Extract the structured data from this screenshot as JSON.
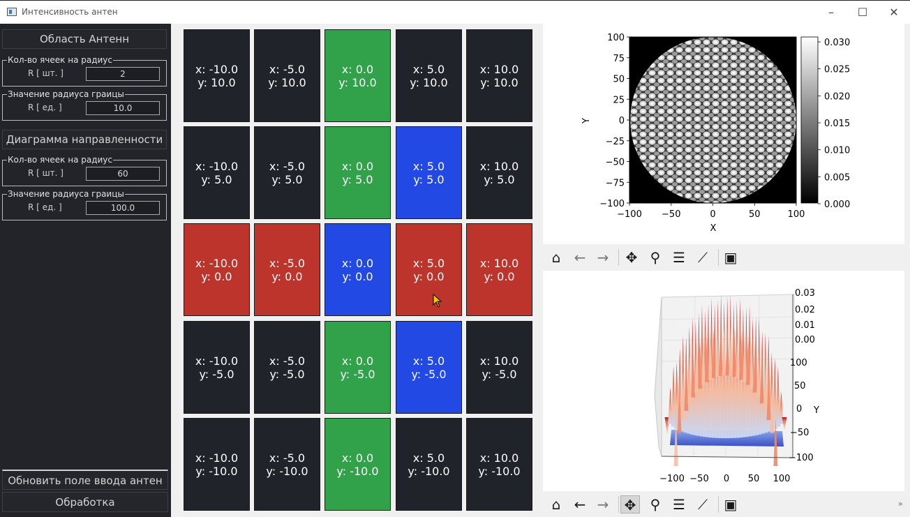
{
  "window": {
    "title": "Интенсивность антен",
    "minimize": "–",
    "maximize": "☐",
    "close": "✕"
  },
  "sidebar": {
    "section1": {
      "title": "Область Антенн",
      "group1": {
        "legend": "Кол-во ячеек на радиус",
        "label": "R [ шт. ]",
        "value": "2"
      },
      "group2": {
        "legend": "Значение радиуса граицы",
        "label": "R [ ед. ]",
        "value": "10.0"
      }
    },
    "section2": {
      "title": "Диаграмма направленности",
      "group1": {
        "legend": "Кол-во ячеек на радиус",
        "label": "R [ шт. ]",
        "value": "60"
      },
      "group2": {
        "legend": "Значение радиуса граицы",
        "label": "R [ ед. ]",
        "value": "100.0"
      }
    },
    "update_button": "Обновить поле ввода антен",
    "process_button": "Обработка"
  },
  "grid": {
    "colors": {
      "dark": "#202329",
      "green": "#31a24a",
      "blue": "#2249e4",
      "red": "#bd342c"
    },
    "rows": [
      [
        {
          "x": "x: -10.0",
          "y": "y: 10.0",
          "c": "dark"
        },
        {
          "x": "x: -5.0",
          "y": "y: 10.0",
          "c": "dark"
        },
        {
          "x": "x: 0.0",
          "y": "y: 10.0",
          "c": "green"
        },
        {
          "x": "x: 5.0",
          "y": "y: 10.0",
          "c": "dark"
        },
        {
          "x": "x: 10.0",
          "y": "y: 10.0",
          "c": "dark"
        }
      ],
      [
        {
          "x": "x: -10.0",
          "y": "y: 5.0",
          "c": "dark"
        },
        {
          "x": "x: -5.0",
          "y": "y: 5.0",
          "c": "dark"
        },
        {
          "x": "x: 0.0",
          "y": "y: 5.0",
          "c": "green"
        },
        {
          "x": "x: 5.0",
          "y": "y: 5.0",
          "c": "blue"
        },
        {
          "x": "x: 10.0",
          "y": "y: 5.0",
          "c": "dark"
        }
      ],
      [
        {
          "x": "x: -10.0",
          "y": "y: 0.0",
          "c": "red"
        },
        {
          "x": "x: -5.0",
          "y": "y: 0.0",
          "c": "red"
        },
        {
          "x": "x: 0.0",
          "y": "y: 0.0",
          "c": "blue"
        },
        {
          "x": "x: 5.0",
          "y": "y: 0.0",
          "c": "red"
        },
        {
          "x": "x: 10.0",
          "y": "y: 0.0",
          "c": "red"
        }
      ],
      [
        {
          "x": "x: -10.0",
          "y": "y: -5.0",
          "c": "dark"
        },
        {
          "x": "x: -5.0",
          "y": "y: -5.0",
          "c": "dark"
        },
        {
          "x": "x: 0.0",
          "y": "y: -5.0",
          "c": "green"
        },
        {
          "x": "x: 5.0",
          "y": "y: -5.0",
          "c": "blue"
        },
        {
          "x": "x: 10.0",
          "y": "y: -5.0",
          "c": "dark"
        }
      ],
      [
        {
          "x": "x: -10.0",
          "y": "y: -10.0",
          "c": "dark"
        },
        {
          "x": "x: -5.0",
          "y": "y: -10.0",
          "c": "dark"
        },
        {
          "x": "x: 0.0",
          "y": "y: -10.0",
          "c": "green"
        },
        {
          "x": "x: 5.0",
          "y": "y: -10.0",
          "c": "dark"
        },
        {
          "x": "x: 10.0",
          "y": "y: -10.0",
          "c": "dark"
        }
      ]
    ]
  },
  "plot2d": {
    "xlabel": "X",
    "ylabel": "Y",
    "xticks": [
      "−100",
      "−50",
      "0",
      "50",
      "100"
    ],
    "yticks": [
      "100",
      "75",
      "50",
      "25",
      "0",
      "−25",
      "−50",
      "−75",
      "−100"
    ],
    "colorbar_ticks": [
      "0.030",
      "0.025",
      "0.020",
      "0.015",
      "0.010",
      "0.005",
      "0.000"
    ]
  },
  "plot3d": {
    "zticks": [
      "0.03",
      "0.02",
      "0.01",
      "0.00"
    ],
    "yticks": [
      "100",
      "50",
      "0",
      "−50",
      "−100"
    ],
    "ylabel": "Y",
    "xticks": [
      "−100",
      "−50",
      "0",
      "50",
      "100"
    ]
  },
  "toolbar": {
    "icons": [
      "home-icon",
      "back-arrow-icon",
      "forward-arrow-icon",
      "pan-icon",
      "zoom-icon",
      "configure-subplots-icon",
      "edit-axis-icon",
      "save-icon"
    ],
    "more": "»"
  }
}
